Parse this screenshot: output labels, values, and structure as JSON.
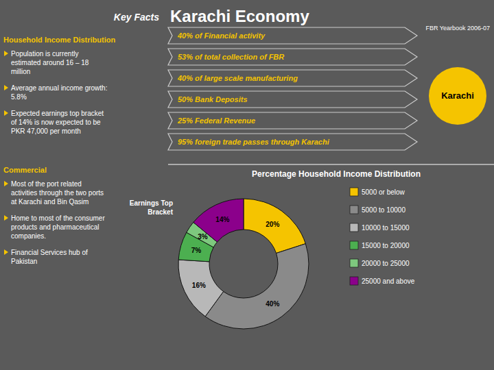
{
  "chart_data": {
    "type": "pie",
    "title": "Percentage Household Income Distribution",
    "categories": [
      "5000 or below",
      "5000 to 10000",
      "10000 to 15000",
      "15000 to 20000",
      "20000 to 25000",
      "25000 and above"
    ],
    "values": [
      20,
      40,
      16,
      7,
      3,
      14
    ],
    "value_labels": [
      "20%",
      "40%",
      "16%",
      "7%",
      "3%",
      "14%"
    ],
    "data_labels": true,
    "colors": [
      "#F5C400",
      "#8a8a8a",
      "#b8b8b8",
      "#4CAF50",
      "#7ec87e",
      "#8B008B"
    ],
    "legend": "right",
    "annotations": [
      "Key Facts",
      "Karachi Economy",
      "Household Income Distribution",
      "Population is currently\nestimated around 16 – 18\nmillion",
      "Average annual income growth:\n5.8%",
      "Expected earnings top bracket\nof 14% is now expected to be\nPKR 47,000 per month",
      "Commercial",
      "Most of the port related\nactivities through the two ports\nat Karachi and Bin Qasim",
      "Home to most of the consumer\nproducts and pharmaceutical\ncompanies.",
      "Financial Services hub of\nPakistan",
      "FBR Yearbook 2006-07",
      "40%",
      " of Financial activity",
      "53%",
      " of total collection of FBR",
      "40%",
      " of large scale manufacturing",
      "50%",
      " Bank Deposits",
      "25%",
      " Federal Revenue",
      "95%",
      " foreign trade passes through Karachi",
      "Karachi",
      "Earnings Top\nBracket"
    ]
  }
}
